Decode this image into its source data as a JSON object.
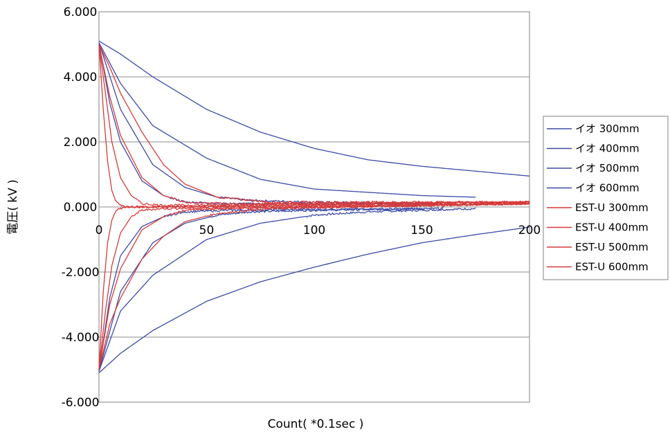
{
  "chart_data": {
    "type": "line",
    "title": "",
    "xlabel": "Count( *0.1sec )",
    "ylabel": "電圧( kV )",
    "xlim": [
      0,
      200
    ],
    "ylim": [
      -6,
      6
    ],
    "x_ticks": [
      "0",
      "50",
      "100",
      "150",
      "200"
    ],
    "y_ticks": [
      "6.000",
      "4.000",
      "2.000",
      "0.000",
      "-2.000",
      "-4.000",
      "-6.000"
    ],
    "grid": "horizontal",
    "legend_position": "right",
    "series": [
      {
        "name": "イオ 300mm",
        "color": "#3b4aa8",
        "end_x": 200,
        "positive": [
          [
            0,
            5.1
          ],
          [
            10,
            4.7
          ],
          [
            25,
            4.0
          ],
          [
            50,
            3.0
          ],
          [
            75,
            2.3
          ],
          [
            100,
            1.8
          ],
          [
            125,
            1.45
          ],
          [
            150,
            1.25
          ],
          [
            175,
            1.1
          ],
          [
            200,
            0.95
          ]
        ],
        "negative": [
          [
            0,
            -5.1
          ],
          [
            10,
            -4.5
          ],
          [
            25,
            -3.8
          ],
          [
            50,
            -2.9
          ],
          [
            75,
            -2.3
          ],
          [
            100,
            -1.85
          ],
          [
            125,
            -1.45
          ],
          [
            150,
            -1.1
          ],
          [
            175,
            -0.85
          ],
          [
            200,
            -0.62
          ]
        ]
      },
      {
        "name": "イオ 400mm",
        "color": "#3b4aa8",
        "end_x": 175,
        "positive": [
          [
            0,
            5.05
          ],
          [
            10,
            3.8
          ],
          [
            25,
            2.5
          ],
          [
            50,
            1.5
          ],
          [
            75,
            0.85
          ],
          [
            100,
            0.55
          ],
          [
            125,
            0.45
          ],
          [
            150,
            0.35
          ],
          [
            175,
            0.3
          ]
        ],
        "negative": [
          [
            0,
            -5.05
          ],
          [
            10,
            -3.2
          ],
          [
            25,
            -2.1
          ],
          [
            50,
            -1.0
          ],
          [
            75,
            -0.5
          ],
          [
            100,
            -0.25
          ],
          [
            125,
            -0.15
          ],
          [
            150,
            -0.1
          ],
          [
            175,
            -0.05
          ]
        ]
      },
      {
        "name": "イオ 500mm",
        "color": "#3b4aa8",
        "end_x": 160,
        "positive": [
          [
            0,
            5.05
          ],
          [
            10,
            3.0
          ],
          [
            25,
            1.3
          ],
          [
            40,
            0.6
          ],
          [
            55,
            0.3
          ],
          [
            70,
            0.2
          ],
          [
            100,
            0.15
          ],
          [
            160,
            0.1
          ]
        ],
        "negative": [
          [
            0,
            -5.05
          ],
          [
            10,
            -2.6
          ],
          [
            25,
            -1.1
          ],
          [
            40,
            -0.5
          ],
          [
            55,
            -0.25
          ],
          [
            70,
            -0.15
          ],
          [
            100,
            -0.1
          ],
          [
            160,
            -0.05
          ]
        ]
      },
      {
        "name": "イオ 600mm",
        "color": "#3b4aa8",
        "end_x": 150,
        "positive": [
          [
            0,
            5.05
          ],
          [
            5,
            3.2
          ],
          [
            10,
            2.0
          ],
          [
            20,
            0.8
          ],
          [
            30,
            0.35
          ],
          [
            40,
            0.15
          ],
          [
            60,
            0.1
          ],
          [
            150,
            0.1
          ]
        ],
        "negative": [
          [
            0,
            -5.05
          ],
          [
            5,
            -2.8
          ],
          [
            10,
            -1.5
          ],
          [
            20,
            -0.6
          ],
          [
            30,
            -0.3
          ],
          [
            40,
            -0.15
          ],
          [
            60,
            -0.1
          ],
          [
            150,
            -0.05
          ]
        ]
      },
      {
        "name": "EST-U 300mm",
        "color": "#d63a3a",
        "end_x": 200,
        "positive": [
          [
            0,
            5.0
          ],
          [
            5,
            4.3
          ],
          [
            10,
            3.5
          ],
          [
            20,
            2.3
          ],
          [
            30,
            1.3
          ],
          [
            40,
            0.7
          ],
          [
            55,
            0.3
          ],
          [
            80,
            0.15
          ],
          [
            200,
            0.15
          ]
        ],
        "negative": [
          [
            0,
            -5.0
          ],
          [
            5,
            -3.6
          ],
          [
            10,
            -2.8
          ],
          [
            20,
            -1.6
          ],
          [
            30,
            -0.9
          ],
          [
            40,
            -0.45
          ],
          [
            55,
            -0.2
          ],
          [
            80,
            -0.05
          ],
          [
            200,
            0.1
          ]
        ]
      },
      {
        "name": "EST-U 400mm",
        "color": "#d63a3a",
        "end_x": 200,
        "positive": [
          [
            0,
            5.0
          ],
          [
            5,
            3.4
          ],
          [
            10,
            2.2
          ],
          [
            20,
            0.9
          ],
          [
            30,
            0.35
          ],
          [
            40,
            0.15
          ],
          [
            60,
            0.1
          ],
          [
            200,
            0.15
          ]
        ],
        "negative": [
          [
            0,
            -5.0
          ],
          [
            5,
            -3.0
          ],
          [
            10,
            -1.9
          ],
          [
            20,
            -0.7
          ],
          [
            30,
            -0.3
          ],
          [
            40,
            -0.1
          ],
          [
            60,
            -0.05
          ],
          [
            200,
            0.1
          ]
        ]
      },
      {
        "name": "EST-U 500mm",
        "color": "#d63a3a",
        "end_x": 200,
        "positive": [
          [
            0,
            5.0
          ],
          [
            3,
            3.5
          ],
          [
            6,
            2.0
          ],
          [
            10,
            0.9
          ],
          [
            15,
            0.35
          ],
          [
            20,
            0.1
          ],
          [
            30,
            0.05
          ],
          [
            200,
            0.15
          ]
        ],
        "negative": [
          [
            0,
            -5.0
          ],
          [
            3,
            -3.2
          ],
          [
            6,
            -1.8
          ],
          [
            10,
            -0.8
          ],
          [
            15,
            -0.3
          ],
          [
            20,
            -0.1
          ],
          [
            30,
            -0.05
          ],
          [
            200,
            0.1
          ]
        ]
      },
      {
        "name": "EST-U 600mm",
        "color": "#d63a3a",
        "end_x": 200,
        "positive": [
          [
            0,
            5.0
          ],
          [
            2,
            3.0
          ],
          [
            4,
            1.4
          ],
          [
            6,
            0.5
          ],
          [
            8,
            0.15
          ],
          [
            12,
            0.0
          ],
          [
            30,
            0.0
          ],
          [
            200,
            0.15
          ]
        ],
        "negative": [
          [
            0,
            -5.0
          ],
          [
            2,
            -2.6
          ],
          [
            4,
            -1.1
          ],
          [
            6,
            -0.4
          ],
          [
            8,
            -0.1
          ],
          [
            12,
            0.0
          ],
          [
            30,
            0.0
          ],
          [
            200,
            0.1
          ]
        ]
      }
    ]
  }
}
